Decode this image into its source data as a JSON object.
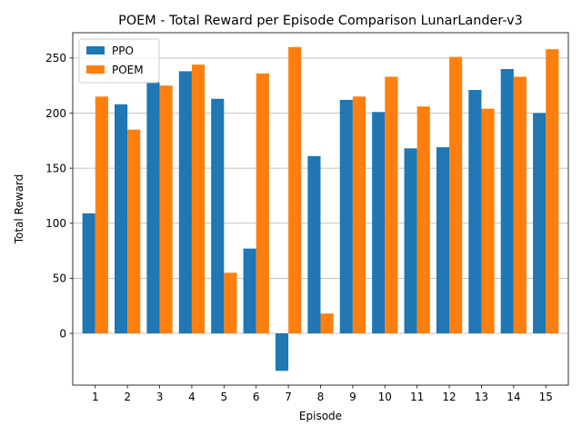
{
  "chart_data": {
    "type": "bar",
    "title": "POEM - Total Reward per Episode Comparison LunarLander-v3",
    "xlabel": "Episode",
    "ylabel": "Total Reward",
    "categories": [
      "1",
      "2",
      "3",
      "4",
      "5",
      "6",
      "7",
      "8",
      "9",
      "10",
      "11",
      "12",
      "13",
      "14",
      "15"
    ],
    "ylim": [
      -47,
      273
    ],
    "yticks": [
      0,
      50,
      100,
      150,
      200,
      250
    ],
    "grid": "horizontal",
    "legend_position": "top-left",
    "series": [
      {
        "name": "PPO",
        "color": "#1f77b4",
        "values": [
          109,
          208,
          228,
          238,
          213,
          77,
          -34,
          161,
          212,
          201,
          168,
          169,
          221,
          240,
          200
        ]
      },
      {
        "name": "POEM",
        "color": "#ff7f0e",
        "values": [
          215,
          185,
          225,
          244,
          55,
          236,
          260,
          18,
          215,
          233,
          206,
          251,
          204,
          233,
          258
        ]
      }
    ]
  }
}
